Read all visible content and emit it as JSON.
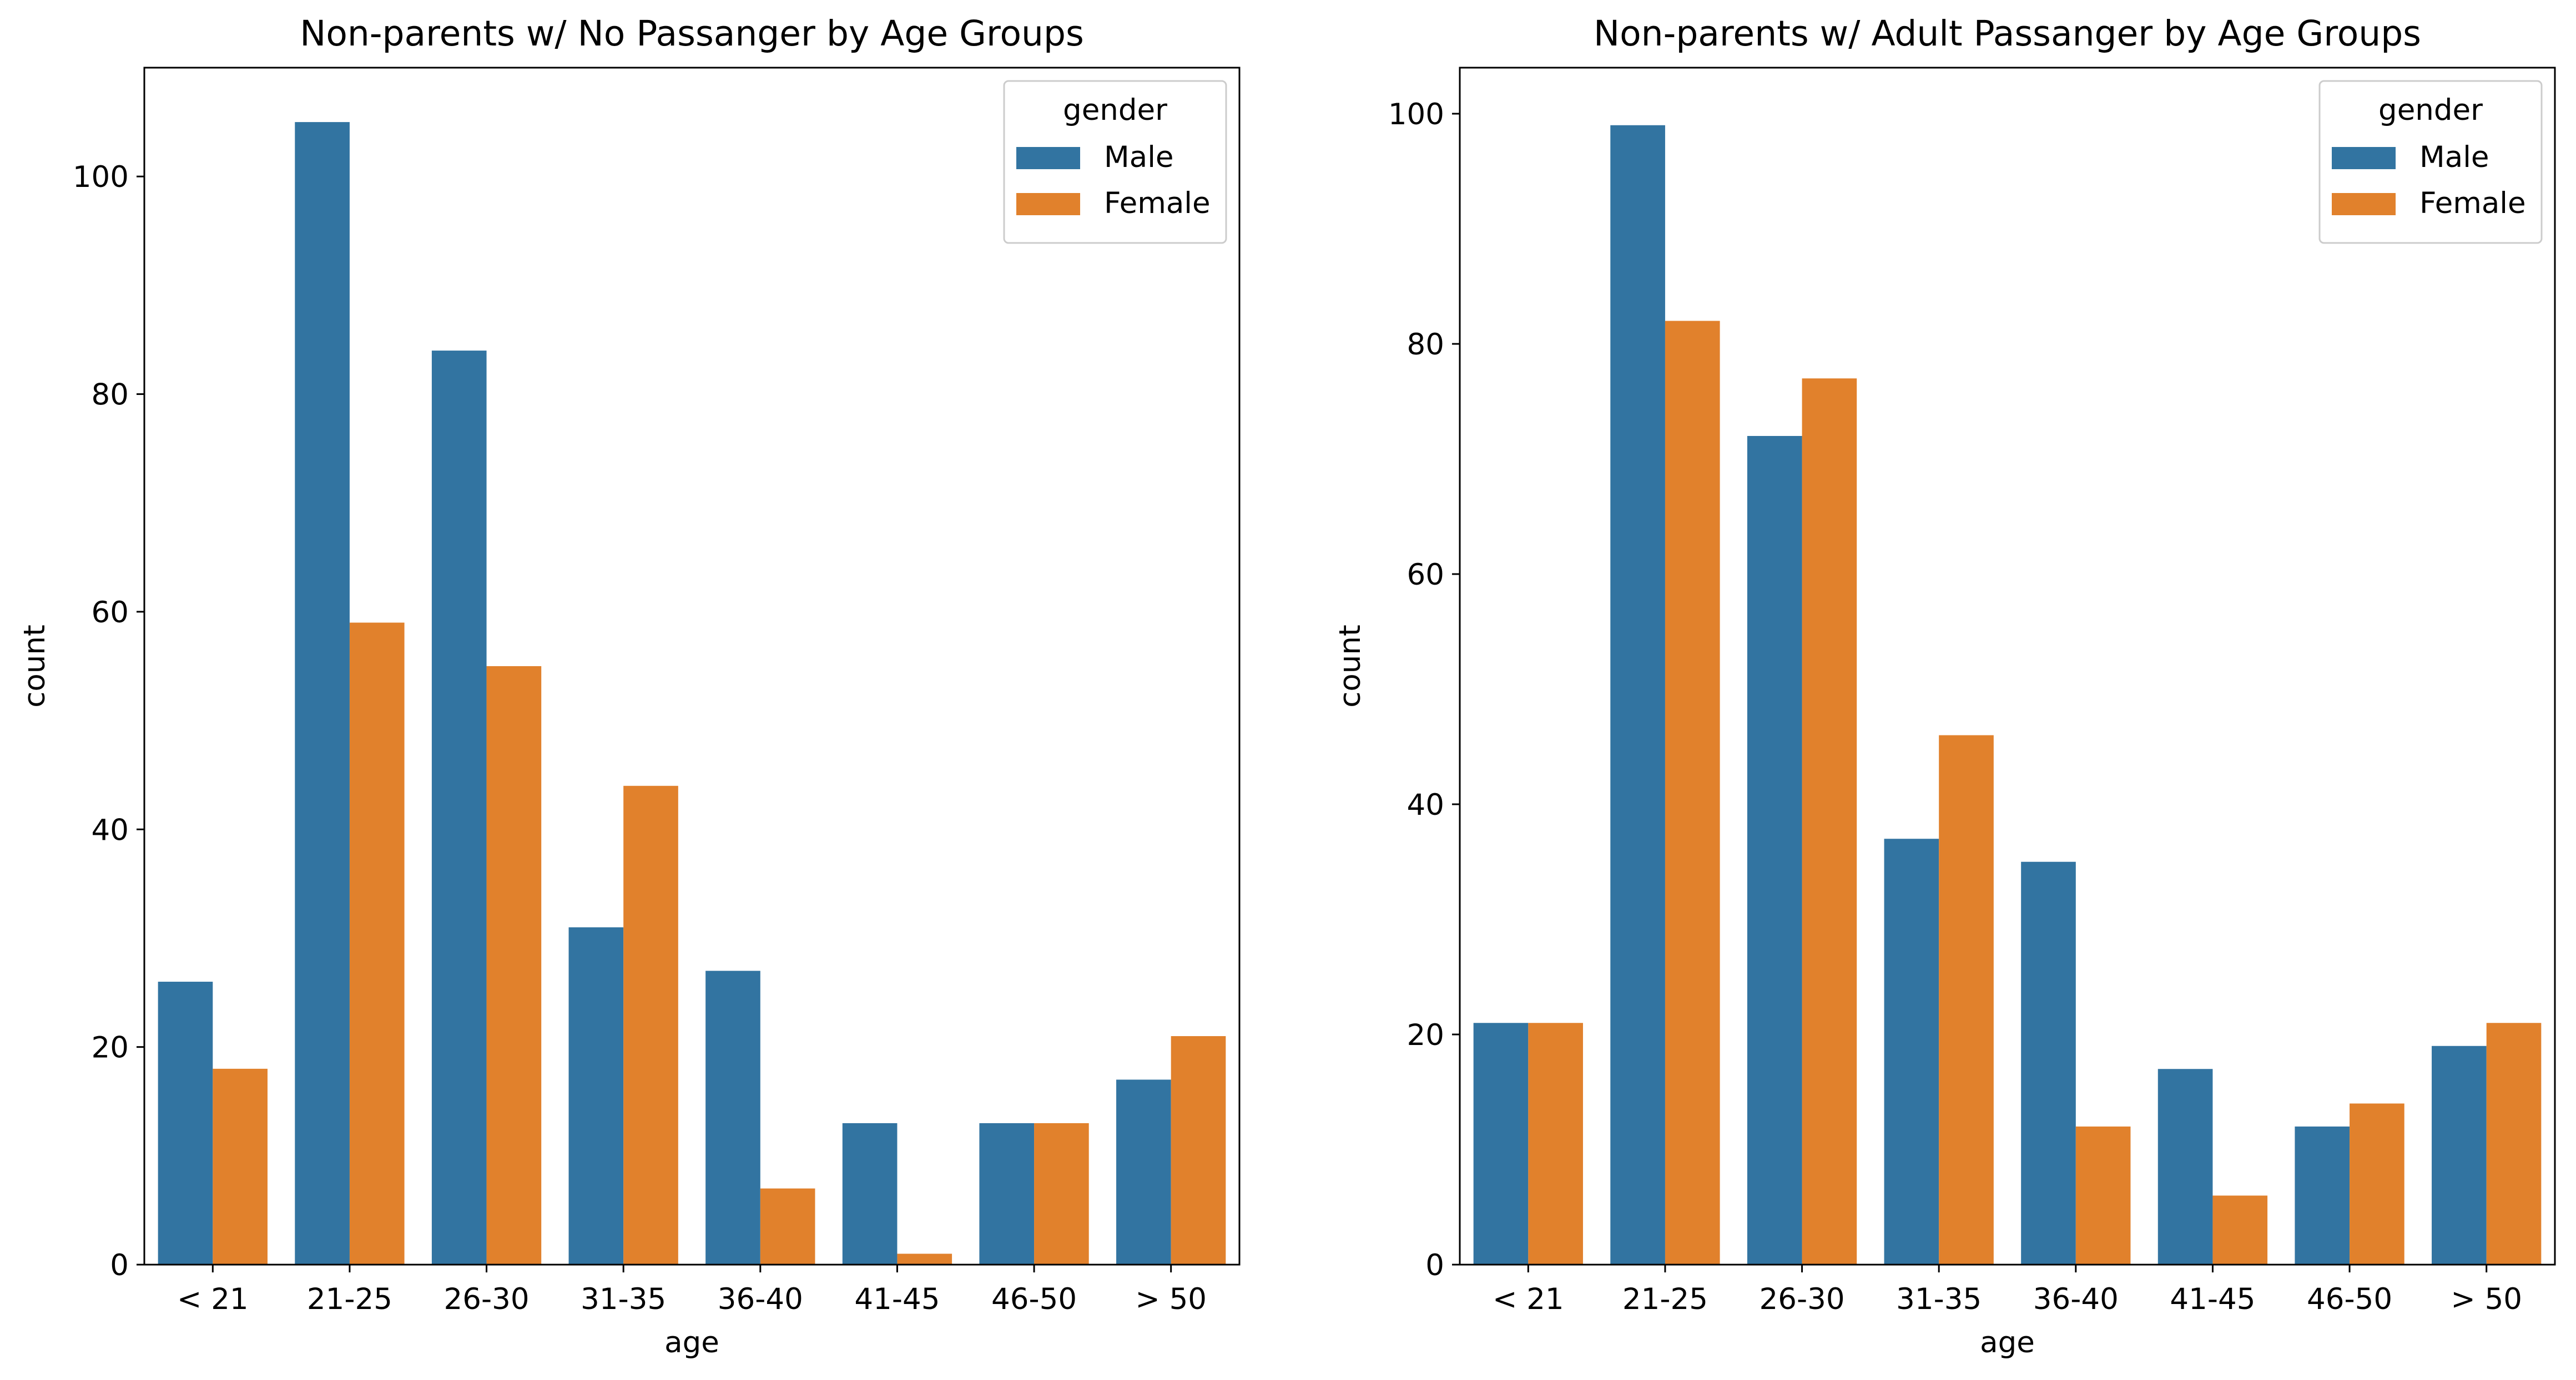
{
  "colors": {
    "male": "#3274a1",
    "female": "#e1812c",
    "axis": "#000000",
    "background": "#ffffff"
  },
  "chart_data": [
    {
      "type": "bar",
      "title": "Non-parents w/ No Passanger by Age Groups",
      "xlabel": "age",
      "ylabel": "count",
      "categories": [
        "< 21",
        "21-25",
        "26-30",
        "31-35",
        "36-40",
        "41-45",
        "46-50",
        "> 50"
      ],
      "series": [
        {
          "name": "Male",
          "values": [
            26,
            105,
            84,
            31,
            27,
            13,
            13,
            17
          ]
        },
        {
          "name": "Female",
          "values": [
            18,
            59,
            55,
            44,
            7,
            1,
            13,
            21
          ]
        }
      ],
      "ylim": [
        0,
        110
      ],
      "yticks": [
        0,
        20,
        40,
        60,
        80,
        100
      ],
      "legend": {
        "title": "gender",
        "placement": "top-right"
      },
      "grid": false
    },
    {
      "type": "bar",
      "title": "Non-parents w/ Adult Passanger by Age Groups",
      "xlabel": "age",
      "ylabel": "count",
      "categories": [
        "< 21",
        "21-25",
        "26-30",
        "31-35",
        "36-40",
        "41-45",
        "46-50",
        "> 50"
      ],
      "series": [
        {
          "name": "Male",
          "values": [
            21,
            99,
            72,
            37,
            35,
            17,
            12,
            19
          ]
        },
        {
          "name": "Female",
          "values": [
            21,
            82,
            77,
            46,
            12,
            6,
            14,
            21
          ]
        }
      ],
      "ylim": [
        0,
        104
      ],
      "yticks": [
        0,
        20,
        40,
        60,
        80,
        100
      ],
      "legend": {
        "title": "gender",
        "placement": "top-right"
      },
      "grid": false
    }
  ]
}
